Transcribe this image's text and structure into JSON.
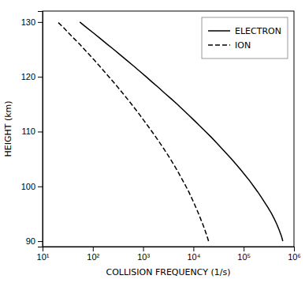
{
  "chart_data": {
    "type": "line",
    "xlabel": "COLLISION FREQUENCY (1/s)",
    "ylabel": "HEIGHT (km)",
    "log": "x",
    "grid": false,
    "legend": "upper right",
    "xlim": [
      10,
      1000000
    ],
    "xticks": [
      {
        "value": 10,
        "label": "10¹"
      },
      {
        "value": 100,
        "label": "10²"
      },
      {
        "value": 1000,
        "label": "10³"
      },
      {
        "value": 10000,
        "label": "10⁴"
      },
      {
        "value": 100000,
        "label": "10⁵"
      },
      {
        "value": 1000000,
        "label": "10⁶"
      }
    ],
    "ylim": [
      89,
      132
    ],
    "yticks": [
      90,
      100,
      110,
      120,
      130
    ],
    "series": [
      {
        "name": "ELECTRON",
        "color": "#000000",
        "line_style": "solid",
        "x": [
          600000,
          560000,
          510000,
          460000,
          410000,
          360000,
          310000,
          265000,
          225000,
          190000,
          158000,
          132000,
          108000,
          88000,
          71000,
          57000,
          45500,
          36000,
          28500,
          22500,
          17500,
          13500,
          10500,
          8100,
          6200,
          4750,
          3600,
          2700,
          2050,
          1530,
          1150,
          860,
          640,
          475,
          350,
          260,
          190,
          140,
          103,
          75,
          55
        ],
        "values": [
          90,
          91,
          92,
          93,
          94,
          95,
          96,
          97,
          98,
          99,
          100,
          101,
          102,
          103,
          104,
          105,
          106,
          107,
          108,
          109,
          110,
          111,
          112,
          113,
          114,
          115,
          116,
          117,
          118,
          119,
          120,
          121,
          122,
          123,
          124,
          125,
          126,
          127,
          128,
          129,
          130
        ]
      },
      {
        "name": "ION",
        "color": "#000000",
        "line_style": "dashed",
        "x": [
          20000,
          18500,
          17000,
          15500,
          14000,
          12700,
          11400,
          10200,
          9100,
          8100,
          7100,
          6200,
          5400,
          4700,
          4050,
          3480,
          2970,
          2520,
          2130,
          1790,
          1500,
          1250,
          1040,
          865,
          715,
          588,
          482,
          394,
          320,
          259,
          209,
          168,
          135,
          108,
          86,
          68,
          54,
          42,
          33,
          26,
          20
        ],
        "values": [
          90,
          91,
          92,
          93,
          94,
          95,
          96,
          97,
          98,
          99,
          100,
          101,
          102,
          103,
          104,
          105,
          106,
          107,
          108,
          109,
          110,
          111,
          112,
          113,
          114,
          115,
          116,
          117,
          118,
          119,
          120,
          121,
          122,
          123,
          124,
          125,
          126,
          127,
          128,
          129,
          130
        ]
      }
    ]
  }
}
